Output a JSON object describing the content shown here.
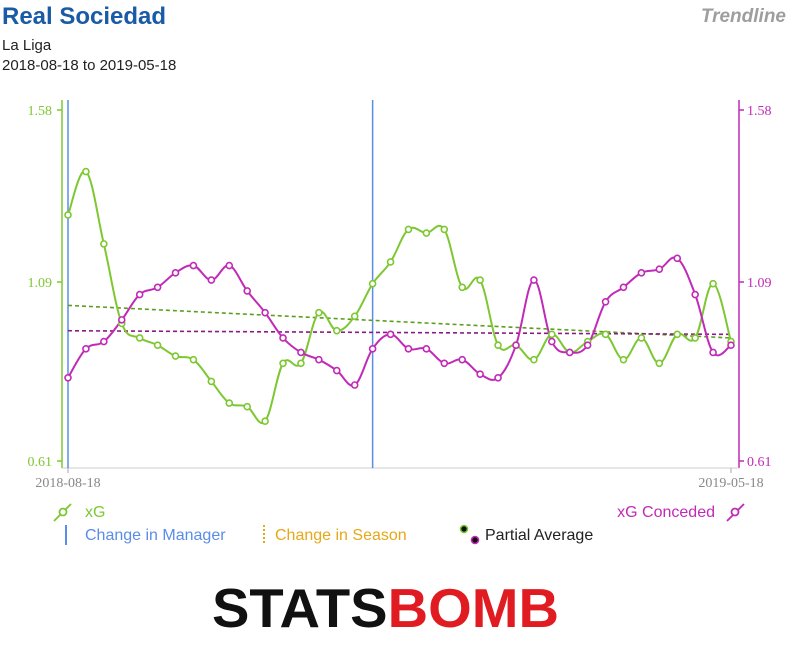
{
  "header": {
    "team": "Real Sociedad",
    "competition": "La Liga",
    "date_range": "2018-08-18 to 2019-05-18",
    "view_mode": "Trendline"
  },
  "colors": {
    "xg": "#7dc832",
    "xg_trend": "#5e9e1e",
    "xga": "#c12ab7",
    "xga_trend": "#8b1a84",
    "manager_change": "#5a8de8",
    "season_change": "#e6a817",
    "title": "#1a5ba6",
    "logo_dark": "#111111",
    "logo_red": "#e11b22"
  },
  "legend": {
    "xg": "xG",
    "xga": "xG Conceded",
    "manager_change": "Change in Manager",
    "season_change": "Change in Season",
    "partial_average": "Partial Average"
  },
  "chart_data": {
    "type": "line",
    "x_start": "2018-08-18",
    "x_end": "2019-05-18",
    "xlim_labels": [
      "2018-08-18",
      "2019-05-18"
    ],
    "ylim": [
      0.61,
      1.58
    ],
    "yticks": [
      0.61,
      1.09,
      1.58
    ],
    "manager_change_match_index": 17,
    "series": [
      {
        "name": "xG",
        "axis": "left",
        "values": [
          1.29,
          1.41,
          1.21,
          0.99,
          0.95,
          0.93,
          0.9,
          0.89,
          0.83,
          0.77,
          0.76,
          0.72,
          0.88,
          0.88,
          1.02,
          0.97,
          1.01,
          1.1,
          1.16,
          1.25,
          1.24,
          1.25,
          1.09,
          1.11,
          0.93,
          0.93,
          0.89,
          0.96,
          0.91,
          0.94,
          0.96,
          0.89,
          0.95,
          0.88,
          0.96,
          0.95,
          1.1,
          0.94
        ],
        "trend": [
          1.04,
          0.95
        ]
      },
      {
        "name": "xG Conceded",
        "axis": "right",
        "values": [
          0.84,
          0.92,
          0.94,
          1.0,
          1.07,
          1.09,
          1.13,
          1.15,
          1.11,
          1.15,
          1.08,
          1.02,
          0.95,
          0.91,
          0.89,
          0.86,
          0.82,
          0.92,
          0.96,
          0.92,
          0.92,
          0.88,
          0.89,
          0.85,
          0.84,
          0.93,
          1.11,
          0.94,
          0.91,
          0.93,
          1.05,
          1.09,
          1.13,
          1.14,
          1.17,
          1.07,
          0.91,
          0.93
        ],
        "trend": [
          0.97,
          0.96
        ]
      }
    ]
  },
  "logo": {
    "stats": "STATS",
    "bomb": "BOMB"
  }
}
